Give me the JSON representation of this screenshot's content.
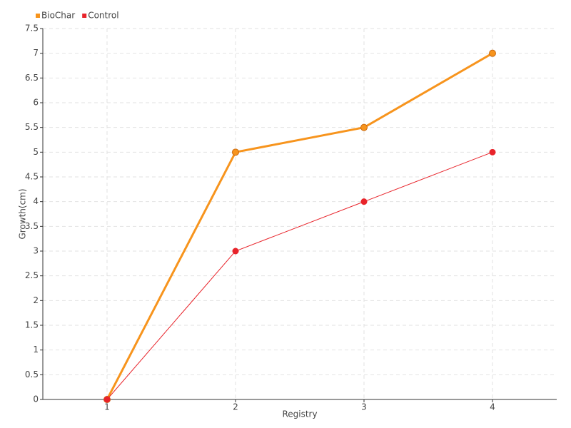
{
  "chart_data": {
    "type": "line",
    "x_label": "Registry",
    "y_label": "Growth(cm)",
    "x": [
      1,
      2,
      3,
      4
    ],
    "series": [
      {
        "name": "BioChar",
        "color": "#f7941d",
        "values": [
          0,
          5,
          5.5,
          7
        ]
      },
      {
        "name": "Control",
        "color": "#e8232a",
        "values": [
          0,
          3,
          4,
          5
        ]
      }
    ],
    "xlim": [
      0.5,
      4.5
    ],
    "xticks": [
      1,
      2,
      3,
      4
    ],
    "ylim": [
      0,
      7.5
    ],
    "yticks": [
      0,
      0.5,
      1,
      1.5,
      2,
      2.5,
      3,
      3.5,
      4,
      4.5,
      5,
      5.5,
      6,
      6.5,
      7,
      7.5
    ],
    "grid": true,
    "legend": "top-left"
  }
}
